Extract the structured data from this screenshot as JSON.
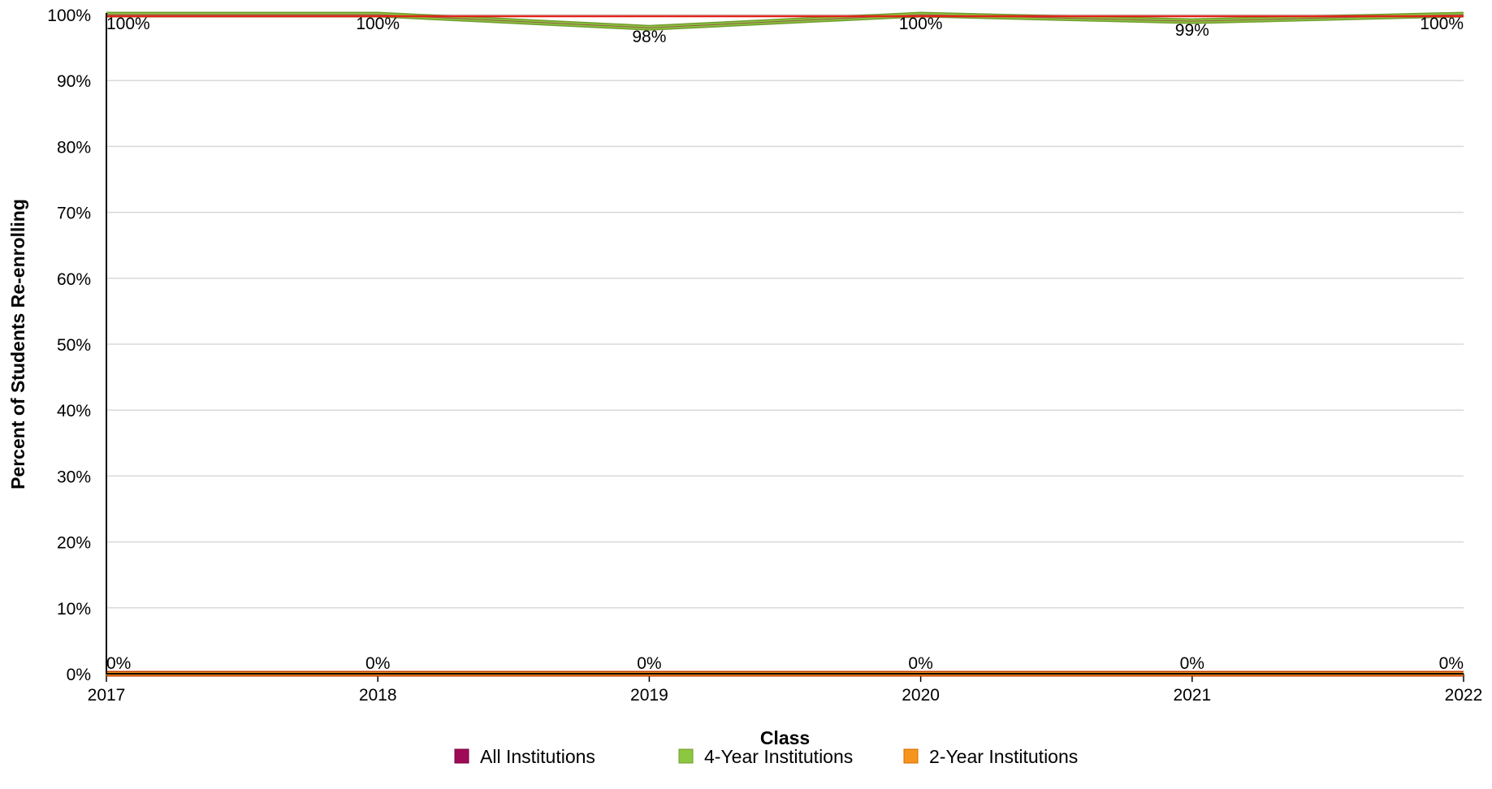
{
  "chart_data": {
    "type": "line",
    "categories": [
      "2017",
      "2018",
      "2019",
      "2020",
      "2021",
      "2022"
    ],
    "series": [
      {
        "name": "All Institutions",
        "color": "#9e0a55",
        "values": [
          100,
          100,
          98,
          100,
          99,
          100
        ],
        "labels": [
          "100%",
          "100%",
          "98%",
          "100%",
          "99%",
          "100%"
        ]
      },
      {
        "name": "4-Year Institutions",
        "color": "#8dc63f",
        "values": [
          100,
          100,
          98,
          100,
          99,
          100
        ],
        "labels": [
          "100%",
          "100%",
          "98%",
          "100%",
          "99%",
          "100%"
        ]
      },
      {
        "name": "2-Year Institutions",
        "color": "#f7941d",
        "values": [
          0,
          0,
          0,
          0,
          0,
          0
        ],
        "labels": [
          "0%",
          "0%",
          "0%",
          "0%",
          "0%",
          "0%"
        ]
      }
    ],
    "y_ticks": [
      "0%",
      "10%",
      "20%",
      "30%",
      "40%",
      "50%",
      "60%",
      "70%",
      "80%",
      "90%",
      "100%"
    ],
    "ylim": [
      0,
      100
    ],
    "xlabel": "Class",
    "ylabel": "Percent of Students Re-enrolling",
    "grid": true,
    "legend_position": "bottom"
  }
}
